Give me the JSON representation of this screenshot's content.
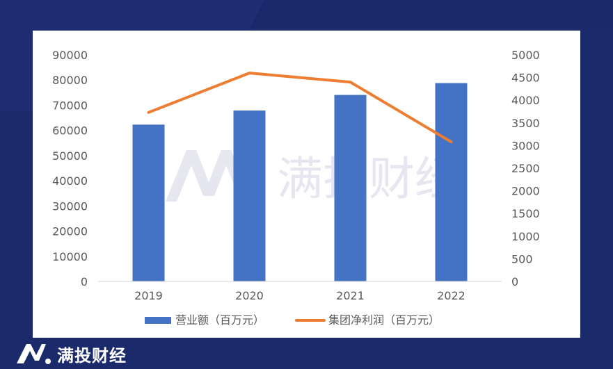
{
  "brand": {
    "name": "满投财经",
    "logo_icon": "M-logo-icon"
  },
  "watermark": {
    "text": "满投财经"
  },
  "colors": {
    "bar": "#4472c4",
    "line": "#ed7d31",
    "background": "#1b2a6b",
    "panel": "#ffffff"
  },
  "chart_data": {
    "type": "bar",
    "categories": [
      "2019",
      "2020",
      "2021",
      "2022"
    ],
    "series": [
      {
        "name": "营业额（百万元）",
        "type": "bar",
        "axis": "left",
        "values": [
          62300,
          67900,
          74100,
          78800
        ]
      },
      {
        "name": "集团净利润（百万元）",
        "type": "line",
        "axis": "right",
        "values": [
          3730,
          4600,
          4400,
          3080
        ]
      }
    ],
    "y_left": {
      "range": [
        0,
        90000
      ],
      "ticks": [
        "0",
        "10000",
        "20000",
        "30000",
        "40000",
        "50000",
        "60000",
        "70000",
        "80000",
        "90000"
      ]
    },
    "y_right": {
      "range": [
        0,
        5000
      ],
      "ticks": [
        "0",
        "500",
        "1000",
        "1500",
        "2000",
        "2500",
        "3000",
        "3500",
        "4000",
        "4500",
        "5000"
      ]
    },
    "title": "",
    "xlabel": "",
    "ylabel": "",
    "grid": false,
    "legend": "bottom"
  }
}
